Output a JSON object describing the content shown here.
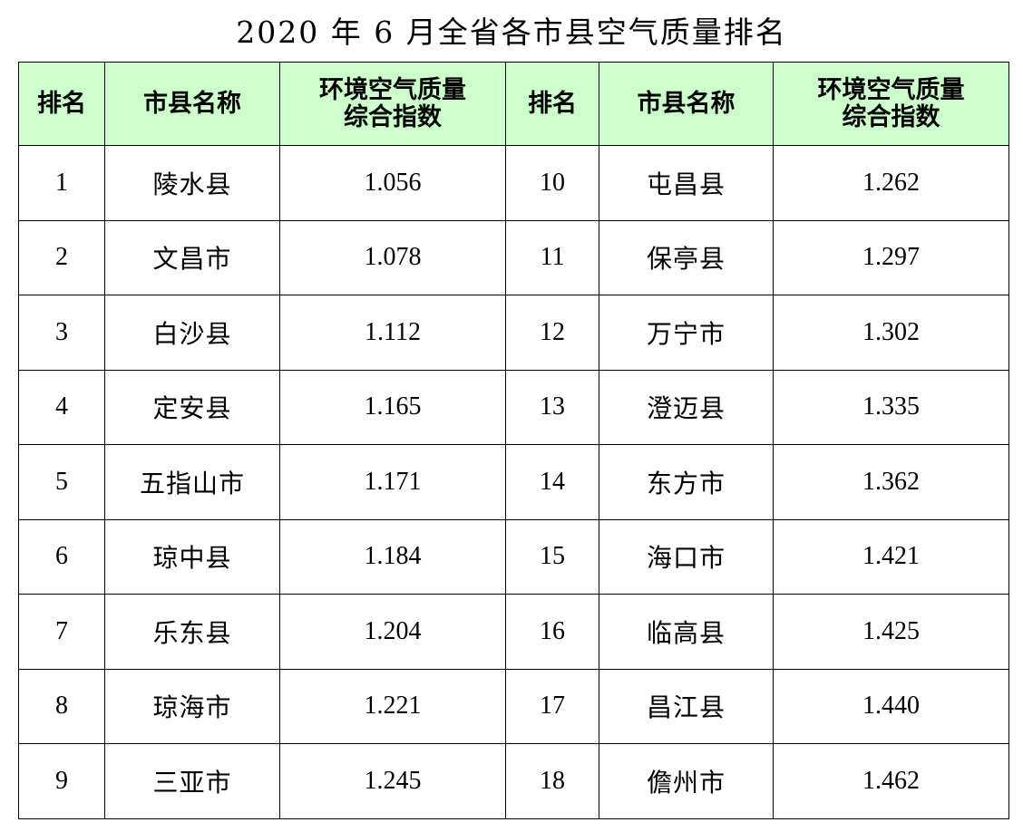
{
  "title": "2020 年 6 月全省各市县空气质量排名",
  "table": {
    "headers": {
      "rank": "排名",
      "city": "市县名称",
      "index_line1": "环境空气质量",
      "index_line2": "综合指数"
    },
    "rows": [
      {
        "left": {
          "rank": "1",
          "city": "陵水县",
          "index": "1.056"
        },
        "right": {
          "rank": "10",
          "city": "屯昌县",
          "index": "1.262"
        }
      },
      {
        "left": {
          "rank": "2",
          "city": "文昌市",
          "index": "1.078"
        },
        "right": {
          "rank": "11",
          "city": "保亭县",
          "index": "1.297"
        }
      },
      {
        "left": {
          "rank": "3",
          "city": "白沙县",
          "index": "1.112"
        },
        "right": {
          "rank": "12",
          "city": "万宁市",
          "index": "1.302"
        }
      },
      {
        "left": {
          "rank": "4",
          "city": "定安县",
          "index": "1.165"
        },
        "right": {
          "rank": "13",
          "city": "澄迈县",
          "index": "1.335"
        }
      },
      {
        "left": {
          "rank": "5",
          "city": "五指山市",
          "index": "1.171"
        },
        "right": {
          "rank": "14",
          "city": "东方市",
          "index": "1.362"
        }
      },
      {
        "left": {
          "rank": "6",
          "city": "琼中县",
          "index": "1.184"
        },
        "right": {
          "rank": "15",
          "city": "海口市",
          "index": "1.421"
        }
      },
      {
        "left": {
          "rank": "7",
          "city": "乐东县",
          "index": "1.204"
        },
        "right": {
          "rank": "16",
          "city": "临高县",
          "index": "1.425"
        }
      },
      {
        "left": {
          "rank": "8",
          "city": "琼海市",
          "index": "1.221"
        },
        "right": {
          "rank": "17",
          "city": "昌江县",
          "index": "1.440"
        }
      },
      {
        "left": {
          "rank": "9",
          "city": "三亚市",
          "index": "1.245"
        },
        "right": {
          "rank": "18",
          "city": "儋州市",
          "index": "1.462"
        }
      }
    ],
    "header_background": "#ccffcc",
    "border_color": "#000000"
  }
}
